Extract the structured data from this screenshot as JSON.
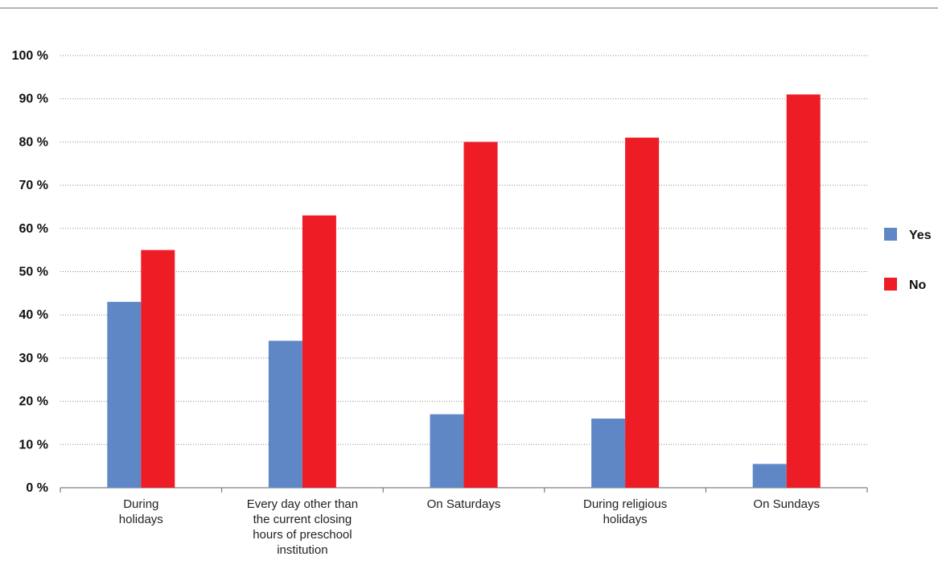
{
  "chart_data": {
    "type": "bar",
    "categories": [
      [
        "During",
        "holidays"
      ],
      [
        "Every day other than",
        "the current closing",
        "hours of preschool",
        "institution"
      ],
      [
        "On Saturdays"
      ],
      [
        "During religious",
        "holidays"
      ],
      [
        "On Sundays"
      ]
    ],
    "series": [
      {
        "name": "Yes",
        "color": "#5f87c6",
        "values": [
          43,
          34,
          17,
          16,
          5.5
        ]
      },
      {
        "name": "No",
        "color": "#ee1c25",
        "values": [
          55,
          63,
          80,
          81,
          91
        ]
      }
    ],
    "yticks": [
      "0 %",
      "10 %",
      "20 %",
      "30 %",
      "40 %",
      "50 %",
      "60 %",
      "70 %",
      "80 %",
      "90 %",
      "100 %"
    ],
    "ylim": [
      0,
      100
    ],
    "grid": "dotted horizontal",
    "legend_position": "right"
  }
}
